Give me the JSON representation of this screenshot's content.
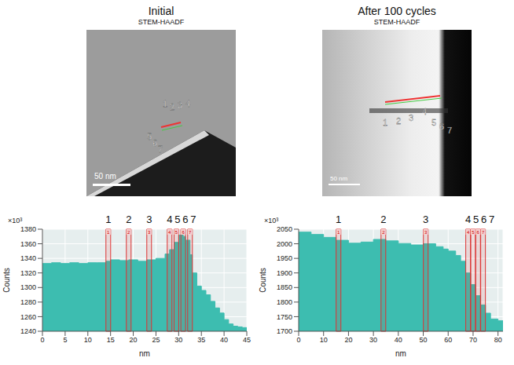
{
  "images": [
    {
      "title": "Initial",
      "subtitle": "STEM-HAADF",
      "scale_bar": "50 nm",
      "labels": [
        "1",
        "2",
        "3",
        "4",
        "5",
        "6",
        "7"
      ]
    },
    {
      "title": "After 100 cycles",
      "subtitle": "STEM-HAADF",
      "scale_bar": "50 nm",
      "labels": [
        "1",
        "2",
        "3",
        "4",
        "5",
        "6",
        "7"
      ]
    }
  ],
  "chart_data": [
    {
      "type": "area",
      "xlabel": "nm",
      "ylabel": "Counts",
      "annotations": [
        "×10³"
      ],
      "color": "#3dbdb0",
      "grid": true,
      "x": [
        0,
        2,
        4,
        6,
        8,
        10,
        12,
        14,
        15,
        17,
        19,
        21,
        23,
        25,
        27,
        28,
        29,
        30,
        31,
        31.5,
        32.5,
        33,
        34,
        35,
        36,
        37,
        38,
        39,
        40,
        41,
        42,
        43,
        44,
        45
      ],
      "values": [
        1333,
        1334,
        1333,
        1334,
        1333,
        1334,
        1334,
        1336,
        1338,
        1337,
        1338,
        1336,
        1338,
        1340,
        1346,
        1352,
        1362,
        1372,
        1370,
        1365,
        1345,
        1320,
        1302,
        1296,
        1290,
        1281,
        1272,
        1265,
        1256,
        1250,
        1247,
        1246,
        1245,
        1245
      ],
      "xlim": [
        0,
        45
      ],
      "xticks": [
        0,
        5,
        10,
        15,
        20,
        25,
        30,
        35,
        40,
        45
      ],
      "ylim": [
        1240,
        1380
      ],
      "yticks": [
        1240,
        1260,
        1280,
        1300,
        1320,
        1340,
        1360,
        1380
      ],
      "markers": [
        {
          "label": "1",
          "x": 14.5
        },
        {
          "label": "2",
          "x": 19
        },
        {
          "label": "3",
          "x": 23.5
        },
        {
          "label": "4",
          "x": 28
        },
        {
          "label": "5",
          "x": 29.5
        },
        {
          "label": "6",
          "x": 31
        },
        {
          "label": "7",
          "x": 32.5
        }
      ]
    },
    {
      "type": "area",
      "xlabel": "nm",
      "ylabel": "Counts",
      "annotations": [
        "×10³"
      ],
      "color": "#3dbdb0",
      "grid": true,
      "x": [
        0,
        5,
        10,
        15,
        20,
        25,
        30,
        35,
        40,
        45,
        50,
        55,
        58,
        60,
        63,
        65,
        67,
        69,
        71,
        73,
        75,
        77,
        80,
        82
      ],
      "values": [
        2040,
        2032,
        2022,
        2012,
        2002,
        2006,
        2015,
        2010,
        2001,
        1996,
        2000,
        1990,
        1982,
        1975,
        1960,
        1940,
        1900,
        1860,
        1822,
        1790,
        1762,
        1742,
        1736,
        1732
      ],
      "xlim": [
        0,
        82
      ],
      "xticks": [
        0,
        10,
        20,
        30,
        40,
        50,
        60,
        70,
        80
      ],
      "ylim": [
        1700,
        2050
      ],
      "yticks": [
        1700,
        1750,
        1800,
        1850,
        1900,
        1950,
        2000,
        2050
      ],
      "markers": [
        {
          "label": "1",
          "x": 16
        },
        {
          "label": "2",
          "x": 34
        },
        {
          "label": "3",
          "x": 51
        },
        {
          "label": "4",
          "x": 68
        },
        {
          "label": "5",
          "x": 70
        },
        {
          "label": "6",
          "x": 72
        },
        {
          "label": "7",
          "x": 74
        }
      ]
    }
  ]
}
